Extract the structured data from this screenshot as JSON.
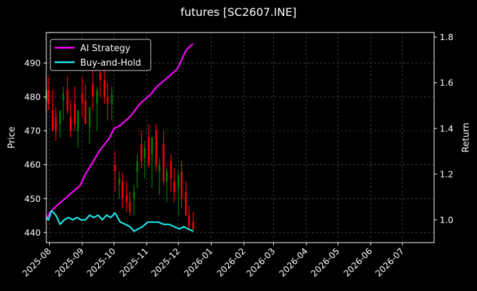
{
  "chart_data": {
    "type": "line",
    "title": "futures [SC2607.INE]",
    "ylabel": "Price",
    "y2label": "Return",
    "ylim": [
      437,
      499
    ],
    "y2lim": [
      0.9,
      1.82
    ],
    "yticks": [
      440,
      450,
      460,
      470,
      480,
      490
    ],
    "y2ticks": [
      1.0,
      1.2,
      1.4,
      1.6,
      1.8
    ],
    "xlim": [
      "2025-07-29",
      "2026-07-31"
    ],
    "xticks": [
      "2025-08",
      "2025-09",
      "2025-10",
      "2025-11",
      "2025-12",
      "2026-01",
      "2026-02",
      "2026-03",
      "2026-04",
      "2026-05",
      "2026-06",
      "2026-07"
    ],
    "grid": true,
    "legend": {
      "placement": "top-left",
      "entries": [
        "AI Strategy",
        "Buy-and-Hold"
      ]
    },
    "colors": {
      "ai": "#ff00ff",
      "bh": "#1ee8ee",
      "up": "#008000",
      "down": "#ff0000",
      "grid": "#555555"
    },
    "candles": {
      "dates": [
        "2025-07-29",
        "2025-07-31",
        "2025-08-04",
        "2025-08-07",
        "2025-08-11",
        "2025-08-14",
        "2025-08-18",
        "2025-08-21",
        "2025-08-25",
        "2025-08-28",
        "2025-09-01",
        "2025-09-04",
        "2025-09-08",
        "2025-09-11",
        "2025-09-15",
        "2025-09-18",
        "2025-09-22",
        "2025-09-25",
        "2025-09-29",
        "2025-10-02",
        "2025-10-06",
        "2025-10-09",
        "2025-10-13",
        "2025-10-16",
        "2025-10-20",
        "2025-10-23",
        "2025-10-27",
        "2025-10-30",
        "2025-11-03",
        "2025-11-06",
        "2025-11-10",
        "2025-11-13",
        "2025-11-17",
        "2025-11-20",
        "2025-11-24",
        "2025-11-27",
        "2025-12-01",
        "2025-12-04",
        "2025-12-08",
        "2025-12-11",
        "2025-12-15"
      ],
      "open": [
        479,
        482,
        476,
        474,
        472,
        479,
        482,
        474,
        478,
        470,
        481,
        479,
        471,
        484,
        478,
        487,
        485,
        480,
        478,
        460,
        454,
        455,
        451,
        449,
        450,
        458,
        466,
        462,
        468,
        463,
        470,
        458,
        466,
        455,
        461,
        455,
        453,
        458,
        452,
        445,
        443
      ],
      "high": [
        483,
        486,
        482,
        477,
        476,
        483,
        486,
        479,
        483,
        476,
        486,
        484,
        477,
        489,
        483,
        492,
        490,
        484,
        483,
        464,
        458,
        458,
        455,
        452,
        454,
        463,
        470,
        467,
        472,
        468,
        472,
        462,
        470,
        459,
        463,
        459,
        458,
        461,
        455,
        448,
        446
      ],
      "low": [
        474,
        476,
        470,
        467,
        468,
        473,
        475,
        468,
        470,
        465,
        474,
        472,
        466,
        476,
        470,
        480,
        478,
        473,
        473,
        452,
        450,
        447,
        446,
        445,
        445,
        453,
        459,
        456,
        459,
        453,
        458,
        451,
        454,
        449,
        452,
        449,
        445,
        447,
        445,
        441,
        440
      ],
      "close": [
        482,
        478,
        470,
        470,
        476,
        481,
        476,
        470,
        472,
        476,
        478,
        472,
        477,
        480,
        482,
        485,
        480,
        478,
        481,
        458,
        456,
        450,
        449,
        446,
        452,
        461,
        461,
        465,
        460,
        468,
        460,
        460,
        455,
        458,
        456,
        452,
        457,
        450,
        445,
        442,
        441
      ]
    },
    "ai_strategy": {
      "dates": [
        "2025-07-29",
        "2025-08-01",
        "2025-08-05",
        "2025-08-10",
        "2025-08-15",
        "2025-08-20",
        "2025-08-25",
        "2025-08-30",
        "2025-09-04",
        "2025-09-08",
        "2025-09-12",
        "2025-09-17",
        "2025-09-22",
        "2025-09-27",
        "2025-10-01",
        "2025-10-06",
        "2025-10-11",
        "2025-10-16",
        "2025-10-21",
        "2025-10-26",
        "2025-10-31",
        "2025-11-05",
        "2025-11-10",
        "2025-11-15",
        "2025-11-20",
        "2025-11-25",
        "2025-11-30",
        "2025-12-04",
        "2025-12-08",
        "2025-12-12",
        "2025-12-15"
      ],
      "values": [
        1.0,
        1.03,
        1.05,
        1.07,
        1.09,
        1.11,
        1.13,
        1.15,
        1.2,
        1.23,
        1.26,
        1.3,
        1.33,
        1.36,
        1.4,
        1.41,
        1.43,
        1.45,
        1.48,
        1.51,
        1.53,
        1.55,
        1.58,
        1.6,
        1.62,
        1.64,
        1.66,
        1.7,
        1.74,
        1.76,
        1.77
      ]
    },
    "buy_and_hold": {
      "dates": [
        "2025-07-29",
        "2025-07-31",
        "2025-08-03",
        "2025-08-07",
        "2025-08-11",
        "2025-08-15",
        "2025-08-19",
        "2025-08-23",
        "2025-08-27",
        "2025-08-31",
        "2025-09-04",
        "2025-09-08",
        "2025-09-12",
        "2025-09-16",
        "2025-09-20",
        "2025-09-24",
        "2025-09-28",
        "2025-10-02",
        "2025-10-07",
        "2025-10-12",
        "2025-10-16",
        "2025-10-20",
        "2025-10-24",
        "2025-10-28",
        "2025-11-02",
        "2025-11-07",
        "2025-11-12",
        "2025-11-17",
        "2025-11-22",
        "2025-11-27",
        "2025-12-02",
        "2025-12-06",
        "2025-12-10",
        "2025-12-15"
      ],
      "values": [
        1.01,
        1.0,
        1.04,
        1.02,
        0.98,
        1.0,
        1.01,
        1.0,
        1.01,
        1.0,
        1.0,
        1.02,
        1.01,
        1.02,
        1.0,
        1.02,
        1.01,
        1.03,
        0.99,
        0.98,
        0.97,
        0.95,
        0.96,
        0.97,
        0.99,
        0.99,
        0.99,
        0.98,
        0.98,
        0.97,
        0.96,
        0.97,
        0.96,
        0.95
      ]
    }
  }
}
